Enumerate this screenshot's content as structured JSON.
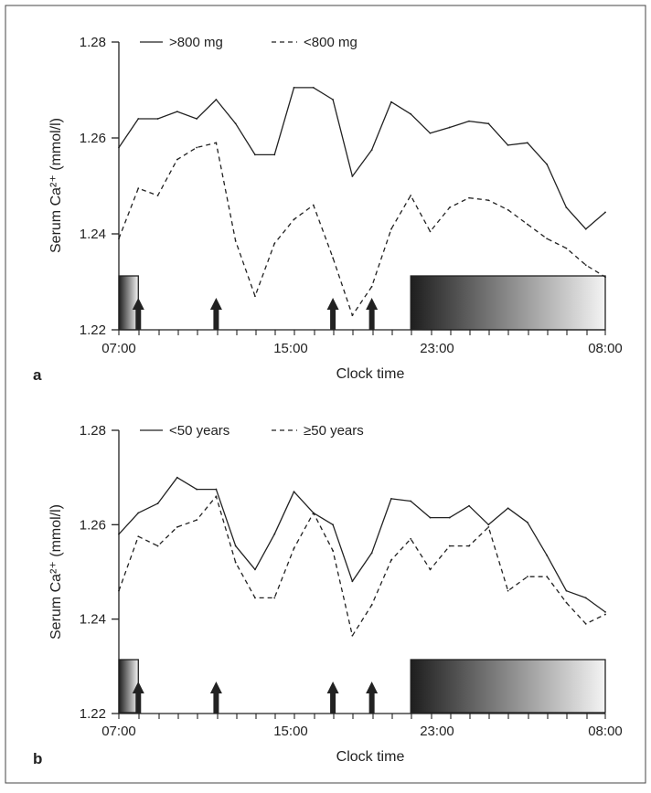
{
  "chart_data": [
    {
      "type": "line",
      "panel_label": "a",
      "xlabel": "Clock time",
      "ylabel": "Serum Ca²⁺ (mmol/l)",
      "x_tick_labels": [
        "07:00",
        "15:00",
        "23:00",
        "08:00"
      ],
      "y_ticks": [
        1.22,
        1.24,
        1.26,
        1.28
      ],
      "y_tick_labels": [
        "1.22",
        "1.24",
        "1.26",
        "1.28"
      ],
      "ylim": [
        1.22,
        1.28
      ],
      "x_unit": "hours after 07:00",
      "xlim": [
        0,
        25
      ],
      "x": [
        0,
        1,
        2,
        3,
        4,
        5,
        6,
        7,
        8,
        9,
        10,
        11,
        12,
        13,
        14,
        15,
        16,
        17,
        18,
        19,
        20,
        21,
        22,
        23,
        24,
        25
      ],
      "series": [
        {
          "name": ">800 mg",
          "style": "solid",
          "values": [
            1.258,
            1.264,
            1.264,
            1.2655,
            1.264,
            1.268,
            1.263,
            1.2565,
            1.2565,
            1.2705,
            1.2705,
            1.268,
            1.252,
            1.2575,
            1.2675,
            1.265,
            1.261,
            1.2622,
            1.2635,
            1.263,
            1.2585,
            1.259,
            1.2545,
            1.2455,
            1.241,
            1.2445
          ]
        },
        {
          "name": "<800 mg",
          "style": "dashed",
          "values": [
            1.239,
            1.2495,
            1.248,
            1.2555,
            1.258,
            1.259,
            1.2385,
            1.227,
            1.238,
            1.243,
            1.246,
            1.235,
            1.223,
            1.229,
            1.241,
            1.248,
            1.2405,
            1.2455,
            1.2475,
            1.247,
            1.245,
            1.242,
            1.239,
            1.237,
            1.2335,
            1.231
          ]
        }
      ],
      "arrows_x": [
        1,
        5,
        11,
        13
      ],
      "bars": [
        {
          "x_start": 0,
          "x_end": 1,
          "gradient": "dark-to-light"
        },
        {
          "x_start": 15,
          "x_end": 25,
          "gradient": "dark-to-light"
        }
      ],
      "legend": "top-left"
    },
    {
      "type": "line",
      "panel_label": "b",
      "xlabel": "Clock time",
      "ylabel": "Serum Ca²⁺ (mmol/l)",
      "x_tick_labels": [
        "07:00",
        "15:00",
        "23:00",
        "08:00"
      ],
      "y_ticks": [
        1.22,
        1.24,
        1.26,
        1.28
      ],
      "y_tick_labels": [
        "1.22",
        "1.24",
        "1.26",
        "1.28"
      ],
      "ylim": [
        1.22,
        1.28
      ],
      "x_unit": "hours after 07:00",
      "xlim": [
        0,
        25
      ],
      "x": [
        0,
        1,
        2,
        3,
        4,
        5,
        6,
        7,
        8,
        9,
        10,
        11,
        12,
        13,
        14,
        15,
        16,
        17,
        18,
        19,
        20,
        21,
        22,
        23,
        24,
        25
      ],
      "series": [
        {
          "name": "<50 years",
          "style": "solid",
          "values": [
            1.258,
            1.2625,
            1.2645,
            1.27,
            1.2675,
            1.2675,
            1.2555,
            1.2505,
            1.258,
            1.267,
            1.2625,
            1.26,
            1.248,
            1.254,
            1.2655,
            1.265,
            1.2615,
            1.2615,
            1.264,
            1.26,
            1.2635,
            1.2605,
            1.2535,
            1.246,
            1.2445,
            1.2415
          ]
        },
        {
          "name": "≥50 years",
          "style": "dashed",
          "values": [
            1.246,
            1.2575,
            1.2555,
            1.2595,
            1.261,
            1.266,
            1.252,
            1.2445,
            1.2445,
            1.255,
            1.2625,
            1.2545,
            1.2365,
            1.243,
            1.2525,
            1.257,
            1.2505,
            1.2555,
            1.2555,
            1.2595,
            1.246,
            1.249,
            1.249,
            1.2435,
            1.239,
            1.241
          ]
        }
      ],
      "arrows_x": [
        1,
        5,
        11,
        13
      ],
      "bars": [
        {
          "x_start": 0,
          "x_end": 1,
          "gradient": "dark-to-light"
        },
        {
          "x_start": 15,
          "x_end": 25,
          "gradient": "dark-to-light"
        }
      ],
      "legend": "top-left"
    }
  ],
  "colors": {
    "line": "#222222",
    "frame": "#444444",
    "gradient_dark": "#1e1e1e",
    "gradient_light": "#f4f4f4"
  }
}
